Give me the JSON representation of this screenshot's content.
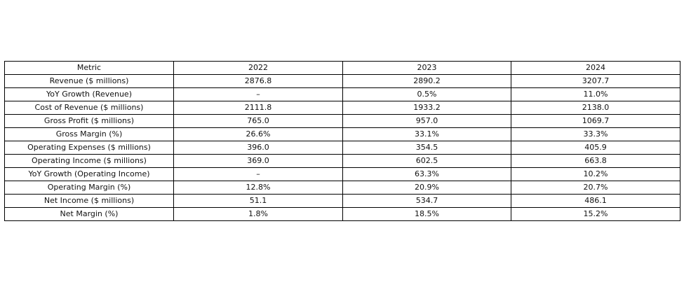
{
  "table": {
    "header": [
      "Metric",
      "2022",
      "2023",
      "2024"
    ],
    "rows": [
      [
        "Revenue ($ millions)",
        "2876.8",
        "2890.2",
        "3207.7"
      ],
      [
        "YoY Growth (Revenue)",
        "–",
        "0.5%",
        "11.0%"
      ],
      [
        "Cost of Revenue ($ millions)",
        "2111.8",
        "1933.2",
        "2138.0"
      ],
      [
        "Gross Profit ($ millions)",
        "765.0",
        "957.0",
        "1069.7"
      ],
      [
        "Gross Margin (%)",
        "26.6%",
        "33.1%",
        "33.3%"
      ],
      [
        "Operating Expenses ($ millions)",
        "396.0",
        "354.5",
        "405.9"
      ],
      [
        "Operating Income ($ millions)",
        "369.0",
        "602.5",
        "663.8"
      ],
      [
        "YoY Growth (Operating Income)",
        "–",
        "63.3%",
        "10.2%"
      ],
      [
        "Operating Margin (%)",
        "12.8%",
        "20.9%",
        "20.7%"
      ],
      [
        "Net Income ($ millions)",
        "51.1",
        "534.7",
        "486.1"
      ],
      [
        "Net Margin (%)",
        "1.8%",
        "18.5%",
        "15.2%"
      ]
    ]
  }
}
